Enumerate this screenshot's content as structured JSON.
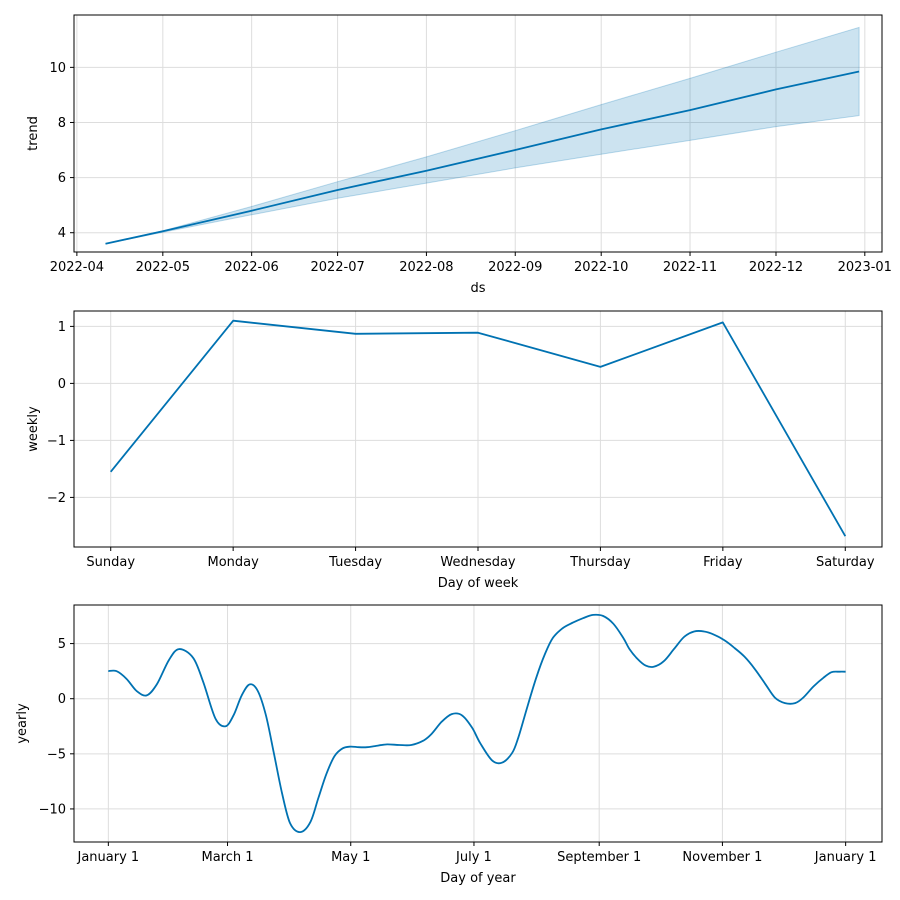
{
  "colors": {
    "line": "#0072B2",
    "band": "#0072B2",
    "grid": "#dddddd"
  },
  "chart_data": [
    {
      "type": "line",
      "xlabel": "ds",
      "ylabel": "trend",
      "x_type": "date",
      "xlim": [
        "2022-03-31",
        "2023-01-07"
      ],
      "ylim": [
        3.3,
        11.9
      ],
      "grid": true,
      "x_ticks": [
        "2022-04-01",
        "2022-05-01",
        "2022-06-01",
        "2022-07-01",
        "2022-08-01",
        "2022-09-01",
        "2022-10-01",
        "2022-11-01",
        "2022-12-01",
        "2023-01-01"
      ],
      "x_tick_labels": [
        "2022-04",
        "2022-05",
        "2022-06",
        "2022-07",
        "2022-08",
        "2022-09",
        "2022-10",
        "2022-11",
        "2022-12",
        "2023-01"
      ],
      "y_ticks": [
        4,
        6,
        8,
        10
      ],
      "y_tick_labels": [
        "4",
        "6",
        "8",
        "10"
      ],
      "series": [
        {
          "x": [
            "2022-04-11",
            "2022-05-01",
            "2022-06-01",
            "2022-07-01",
            "2022-08-01",
            "2022-09-01",
            "2022-10-01",
            "2022-11-01",
            "2022-12-01",
            "2022-12-30"
          ],
          "y": [
            3.6,
            4.05,
            4.8,
            5.55,
            6.25,
            7.0,
            7.75,
            8.45,
            9.2,
            9.85
          ],
          "lower": [
            3.6,
            4.02,
            4.65,
            5.25,
            5.8,
            6.35,
            6.85,
            7.35,
            7.85,
            8.25
          ],
          "upper": [
            3.6,
            4.07,
            4.95,
            5.85,
            6.75,
            7.7,
            8.65,
            9.6,
            10.55,
            11.45
          ]
        }
      ]
    },
    {
      "type": "line",
      "xlabel": "Day of week",
      "ylabel": "weekly",
      "categories": [
        "Sunday",
        "Monday",
        "Tuesday",
        "Wednesday",
        "Thursday",
        "Friday",
        "Saturday"
      ],
      "xlim": [
        -0.3,
        6.3
      ],
      "ylim": [
        -2.87,
        1.27
      ],
      "grid": true,
      "y_ticks": [
        -2,
        -1,
        0,
        1
      ],
      "y_tick_labels": [
        "−2",
        "−1",
        "0",
        "1"
      ],
      "series": [
        {
          "values": [
            -1.55,
            1.1,
            0.87,
            0.89,
            0.29,
            1.07,
            -2.68
          ]
        }
      ]
    },
    {
      "type": "line",
      "xlabel": "Day of year",
      "ylabel": "yearly",
      "x_type": "day_of_year",
      "xlim": [
        -17,
        383
      ],
      "ylim": [
        -13.0,
        8.5
      ],
      "grid": true,
      "x_ticks": [
        0,
        59,
        120,
        181,
        243,
        304,
        365
      ],
      "x_tick_labels": [
        "January 1",
        "March 1",
        "May 1",
        "July 1",
        "September 1",
        "November 1",
        "January 1"
      ],
      "y_ticks": [
        -10,
        -5,
        0,
        5
      ],
      "y_tick_labels": [
        "−10",
        "−5",
        "0",
        "5"
      ],
      "series": [
        {
          "x": [
            0,
            4,
            9,
            14,
            19,
            24,
            30,
            35,
            42,
            47,
            53,
            58,
            62,
            66,
            70,
            74,
            78,
            82,
            86,
            90,
            95,
            100,
            104,
            108,
            112,
            116,
            120,
            124,
            128,
            132,
            138,
            144,
            150,
            156,
            160,
            165,
            170,
            175,
            180,
            184,
            190,
            195,
            200,
            203,
            207,
            212,
            216,
            220,
            225,
            230,
            235,
            240,
            245,
            250,
            255,
            258,
            262,
            266,
            270,
            275,
            280,
            285,
            290,
            295,
            300,
            305,
            310,
            315,
            320,
            325,
            330,
            335,
            340,
            344,
            349,
            354,
            358,
            362,
            365
          ],
          "y": [
            2.5,
            2.5,
            1.8,
            0.7,
            0.3,
            1.3,
            3.5,
            4.5,
            3.7,
            1.5,
            -1.8,
            -2.5,
            -1.5,
            0.3,
            1.3,
            0.7,
            -1.5,
            -5.0,
            -8.6,
            -11.3,
            -12.1,
            -11.2,
            -9.0,
            -6.8,
            -5.2,
            -4.5,
            -4.35,
            -4.4,
            -4.4,
            -4.3,
            -4.15,
            -4.2,
            -4.2,
            -3.8,
            -3.2,
            -2.1,
            -1.4,
            -1.5,
            -2.6,
            -4.0,
            -5.6,
            -5.8,
            -4.9,
            -3.5,
            -1.0,
            2.0,
            4.0,
            5.5,
            6.4,
            6.9,
            7.3,
            7.6,
            7.5,
            6.8,
            5.5,
            4.5,
            3.6,
            3.0,
            2.9,
            3.4,
            4.5,
            5.6,
            6.1,
            6.1,
            5.8,
            5.3,
            4.6,
            3.8,
            2.7,
            1.4,
            0.1,
            -0.4,
            -0.4,
            0.1,
            1.1,
            1.9,
            2.4,
            2.45,
            2.45
          ]
        }
      ]
    }
  ]
}
